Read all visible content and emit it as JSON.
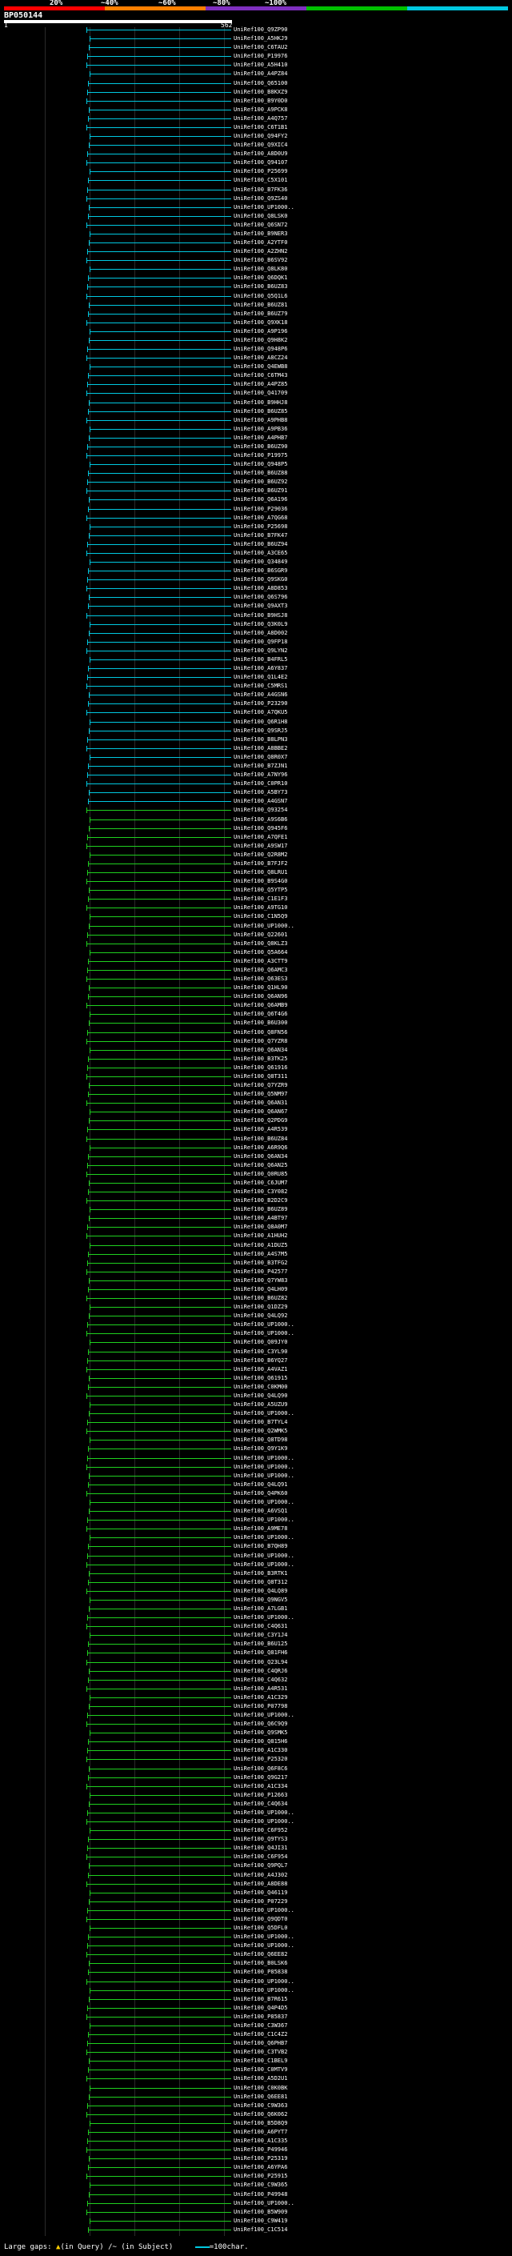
{
  "scale": {
    "ticks": [
      "20%",
      "~40%",
      "~60%",
      "~80%",
      "~100%"
    ],
    "colors": [
      "#ff0000",
      "#ff7f00",
      "#7f2fbf",
      "#00c000",
      "#00c8e0"
    ]
  },
  "query": {
    "title": "BP050144",
    "start": "1",
    "end": "562"
  },
  "colors": {
    "cyan": "#00c8e0",
    "green": "#1fd01f",
    "background": "#000000"
  },
  "hits": [
    {
      "label": "UniRef100_Q9ZP90",
      "color": "cyan"
    },
    {
      "label": "UniRef100_A5HKJ9",
      "color": "cyan"
    },
    {
      "label": "UniRef100_C6TAU2",
      "color": "cyan"
    },
    {
      "label": "UniRef100_P19976",
      "color": "cyan"
    },
    {
      "label": "UniRef100_A5H410",
      "color": "cyan"
    },
    {
      "label": "UniRef100_A4PZ84",
      "color": "cyan"
    },
    {
      "label": "UniRef100_Q65100",
      "color": "cyan"
    },
    {
      "label": "UniRef100_B8KXZ9",
      "color": "cyan"
    },
    {
      "label": "UniRef100_B9Y0D0",
      "color": "cyan"
    },
    {
      "label": "UniRef100_A9PCK8",
      "color": "cyan"
    },
    {
      "label": "UniRef100_A4Q757",
      "color": "cyan"
    },
    {
      "label": "UniRef100_C6T1B1",
      "color": "cyan"
    },
    {
      "label": "UniRef100_Q94FY2",
      "color": "cyan"
    },
    {
      "label": "UniRef100_Q9XIC4",
      "color": "cyan"
    },
    {
      "label": "UniRef100_A8D0U9",
      "color": "cyan"
    },
    {
      "label": "UniRef100_Q94107",
      "color": "cyan"
    },
    {
      "label": "UniRef100_P25699",
      "color": "cyan"
    },
    {
      "label": "UniRef100_C5X101",
      "color": "cyan"
    },
    {
      "label": "UniRef100_B7FK36",
      "color": "cyan"
    },
    {
      "label": "UniRef100_Q9ZS40",
      "color": "cyan"
    },
    {
      "label": "UniRef100_UP1000..",
      "color": "cyan"
    },
    {
      "label": "UniRef100_Q8LSK0",
      "color": "cyan"
    },
    {
      "label": "UniRef100_Q6SN72",
      "color": "cyan"
    },
    {
      "label": "UniRef100_B9NER3",
      "color": "cyan"
    },
    {
      "label": "UniRef100_A2YTF0",
      "color": "cyan"
    },
    {
      "label": "UniRef100_A2ZHN2",
      "color": "cyan"
    },
    {
      "label": "UniRef100_B6SV92",
      "color": "cyan"
    },
    {
      "label": "UniRef100_Q8LK80",
      "color": "cyan"
    },
    {
      "label": "UniRef100_Q6DQK1",
      "color": "cyan"
    },
    {
      "label": "UniRef100_B6UZ83",
      "color": "cyan"
    },
    {
      "label": "UniRef100_Q5Q1L6",
      "color": "cyan"
    },
    {
      "label": "UniRef100_B6UZ81",
      "color": "cyan"
    },
    {
      "label": "UniRef100_B6UZ79",
      "color": "cyan"
    },
    {
      "label": "UniRef100_Q9XK18",
      "color": "cyan"
    },
    {
      "label": "UniRef100_A9P196",
      "color": "cyan"
    },
    {
      "label": "UniRef100_Q9H8K2",
      "color": "cyan"
    },
    {
      "label": "UniRef100_Q948P6",
      "color": "cyan"
    },
    {
      "label": "UniRef100_A8CZ24",
      "color": "cyan"
    },
    {
      "label": "UniRef100_Q4EWB8",
      "color": "cyan"
    },
    {
      "label": "UniRef100_C6TM43",
      "color": "cyan"
    },
    {
      "label": "UniRef100_A4PZ85",
      "color": "cyan"
    },
    {
      "label": "UniRef100_Q41709",
      "color": "cyan"
    },
    {
      "label": "UniRef100_B9HHJ8",
      "color": "cyan"
    },
    {
      "label": "UniRef100_B6UZ85",
      "color": "cyan"
    },
    {
      "label": "UniRef100_A9PHB8",
      "color": "cyan"
    },
    {
      "label": "UniRef100_A9PB36",
      "color": "cyan"
    },
    {
      "label": "UniRef100_A4PHB7",
      "color": "cyan"
    },
    {
      "label": "UniRef100_B6UZ90",
      "color": "cyan"
    },
    {
      "label": "UniRef100_P19975",
      "color": "cyan"
    },
    {
      "label": "UniRef100_Q948P5",
      "color": "cyan"
    },
    {
      "label": "UniRef100_B6UZ88",
      "color": "cyan"
    },
    {
      "label": "UniRef100_B6UZ92",
      "color": "cyan"
    },
    {
      "label": "UniRef100_B6UZ91",
      "color": "cyan"
    },
    {
      "label": "UniRef100_Q6A196",
      "color": "cyan"
    },
    {
      "label": "UniRef100_P29036",
      "color": "cyan"
    },
    {
      "label": "UniRef100_A7QG68",
      "color": "cyan"
    },
    {
      "label": "UniRef100_P25698",
      "color": "cyan"
    },
    {
      "label": "UniRef100_B7FK47",
      "color": "cyan"
    },
    {
      "label": "UniRef100_B6UZ94",
      "color": "cyan"
    },
    {
      "label": "UniRef100_A3CE65",
      "color": "cyan"
    },
    {
      "label": "UniRef100_Q34849",
      "color": "cyan"
    },
    {
      "label": "UniRef100_B6SGR9",
      "color": "cyan"
    },
    {
      "label": "UniRef100_Q9SKG0",
      "color": "cyan"
    },
    {
      "label": "UniRef100_A8D853",
      "color": "cyan"
    },
    {
      "label": "UniRef100_Q6S796",
      "color": "cyan"
    },
    {
      "label": "UniRef100_Q9AXT3",
      "color": "cyan"
    },
    {
      "label": "UniRef100_B9HSJ8",
      "color": "cyan"
    },
    {
      "label": "UniRef100_Q3K0L9",
      "color": "cyan"
    },
    {
      "label": "UniRef100_A8D002",
      "color": "cyan"
    },
    {
      "label": "UniRef100_Q9FP18",
      "color": "cyan"
    },
    {
      "label": "UniRef100_Q9LYN2",
      "color": "cyan"
    },
    {
      "label": "UniRef100_B4FRL5",
      "color": "cyan"
    },
    {
      "label": "UniRef100_A6Y837",
      "color": "cyan"
    },
    {
      "label": "UniRef100_Q1L4E2",
      "color": "cyan"
    },
    {
      "label": "UniRef100_C5MRS1",
      "color": "cyan"
    },
    {
      "label": "UniRef100_A4GSN6",
      "color": "cyan"
    },
    {
      "label": "UniRef100_P23290",
      "color": "cyan"
    },
    {
      "label": "UniRef100_A7QKU5",
      "color": "cyan"
    },
    {
      "label": "UniRef100_Q6R1H8",
      "color": "cyan"
    },
    {
      "label": "UniRef100_Q9SRJ5",
      "color": "cyan"
    },
    {
      "label": "UniRef100_B8LPN3",
      "color": "cyan"
    },
    {
      "label": "UniRef100_A8BBE2",
      "color": "cyan"
    },
    {
      "label": "UniRef100_Q8R0X7",
      "color": "cyan"
    },
    {
      "label": "UniRef100_B7ZJN1",
      "color": "cyan"
    },
    {
      "label": "UniRef100_A7NY96",
      "color": "cyan"
    },
    {
      "label": "UniRef100_C0PR10",
      "color": "cyan"
    },
    {
      "label": "UniRef100_A5BY73",
      "color": "cyan"
    },
    {
      "label": "UniRef100_A4GSN7",
      "color": "cyan"
    },
    {
      "label": "UniRef100_Q93254",
      "color": "green"
    },
    {
      "label": "UniRef100_A9S6B6",
      "color": "green"
    },
    {
      "label": "UniRef100_Q945F6",
      "color": "green"
    },
    {
      "label": "UniRef100_A7QFE1",
      "color": "green"
    },
    {
      "label": "UniRef100_A9SW17",
      "color": "green"
    },
    {
      "label": "UniRef100_Q2R8M2",
      "color": "green"
    },
    {
      "label": "UniRef100_B7FJF2",
      "color": "green"
    },
    {
      "label": "UniRef100_Q8LRU1",
      "color": "green"
    },
    {
      "label": "UniRef100_B9S4G0",
      "color": "green"
    },
    {
      "label": "UniRef100_Q5YTP5",
      "color": "green"
    },
    {
      "label": "UniRef100_C1E1F3",
      "color": "green"
    },
    {
      "label": "UniRef100_A9TG10",
      "color": "green"
    },
    {
      "label": "UniRef100_C1N5Q9",
      "color": "green"
    },
    {
      "label": "UniRef100_UP1000..",
      "color": "green"
    },
    {
      "label": "UniRef100_Q22601",
      "color": "green"
    },
    {
      "label": "UniRef100_Q8KLZ3",
      "color": "green"
    },
    {
      "label": "UniRef100_Q5A664",
      "color": "green"
    },
    {
      "label": "UniRef100_A3CTT9",
      "color": "green"
    },
    {
      "label": "UniRef100_Q6AMC3",
      "color": "green"
    },
    {
      "label": "UniRef100_Q63ES3",
      "color": "green"
    },
    {
      "label": "UniRef100_Q1HL90",
      "color": "green"
    },
    {
      "label": "UniRef100_Q6AN96",
      "color": "green"
    },
    {
      "label": "UniRef100_Q6AMB9",
      "color": "green"
    },
    {
      "label": "UniRef100_Q6T4G6",
      "color": "green"
    },
    {
      "label": "UniRef100_B6U300",
      "color": "green"
    },
    {
      "label": "UniRef100_Q8FN56",
      "color": "green"
    },
    {
      "label": "UniRef100_Q7YZR8",
      "color": "green"
    },
    {
      "label": "UniRef100_Q6AN34",
      "color": "green"
    },
    {
      "label": "UniRef100_B3TK25",
      "color": "green"
    },
    {
      "label": "UniRef100_Q61916",
      "color": "green"
    },
    {
      "label": "UniRef100_Q8T311",
      "color": "green"
    },
    {
      "label": "UniRef100_Q7YZR9",
      "color": "green"
    },
    {
      "label": "UniRef100_Q5NM97",
      "color": "green"
    },
    {
      "label": "UniRef100_Q6AN31",
      "color": "green"
    },
    {
      "label": "UniRef100_Q6AN67",
      "color": "green"
    },
    {
      "label": "UniRef100_Q2PDG9",
      "color": "green"
    },
    {
      "label": "UniRef100_A4R539",
      "color": "green"
    },
    {
      "label": "UniRef100_B6UZ84",
      "color": "green"
    },
    {
      "label": "UniRef100_A6R9Q6",
      "color": "green"
    },
    {
      "label": "UniRef100_Q6AN34",
      "color": "green"
    },
    {
      "label": "UniRef100_Q6AN25",
      "color": "green"
    },
    {
      "label": "UniRef100_Q0RU85",
      "color": "green"
    },
    {
      "label": "UniRef100_C6JUM7",
      "color": "green"
    },
    {
      "label": "UniRef100_C3Y082",
      "color": "green"
    },
    {
      "label": "UniRef100_B2D2C9",
      "color": "green"
    },
    {
      "label": "UniRef100_B6UZ89",
      "color": "green"
    },
    {
      "label": "UniRef100_A4BT97",
      "color": "green"
    },
    {
      "label": "UniRef100_Q8A0M7",
      "color": "green"
    },
    {
      "label": "UniRef100_A1HUH2",
      "color": "green"
    },
    {
      "label": "UniRef100_A1DUZ5",
      "color": "green"
    },
    {
      "label": "UniRef100_A4S7M5",
      "color": "green"
    },
    {
      "label": "UniRef100_B3TFG2",
      "color": "green"
    },
    {
      "label": "UniRef100_P42577",
      "color": "green"
    },
    {
      "label": "UniRef100_Q7YW83",
      "color": "green"
    },
    {
      "label": "UniRef100_Q4LH09",
      "color": "green"
    },
    {
      "label": "UniRef100_B6UZ82",
      "color": "green"
    },
    {
      "label": "UniRef100_Q1DZ29",
      "color": "green"
    },
    {
      "label": "UniRef100_Q4LQ92",
      "color": "green"
    },
    {
      "label": "UniRef100_UP1000..",
      "color": "green"
    },
    {
      "label": "UniRef100_UP1000..",
      "color": "green"
    },
    {
      "label": "UniRef100_Q09JY0",
      "color": "green"
    },
    {
      "label": "UniRef100_C3YL90",
      "color": "green"
    },
    {
      "label": "UniRef100_B6YQ27",
      "color": "green"
    },
    {
      "label": "UniRef100_A4VAZ1",
      "color": "green"
    },
    {
      "label": "UniRef100_Q61915",
      "color": "green"
    },
    {
      "label": "UniRef100_C0KM00",
      "color": "green"
    },
    {
      "label": "UniRef100_Q4LQ90",
      "color": "green"
    },
    {
      "label": "UniRef100_A5UZU9",
      "color": "green"
    },
    {
      "label": "UniRef100_UP1000..",
      "color": "green"
    },
    {
      "label": "UniRef100_B7TYL4",
      "color": "green"
    },
    {
      "label": "UniRef100_Q2WMK5",
      "color": "green"
    },
    {
      "label": "UniRef100_Q8TD98",
      "color": "green"
    },
    {
      "label": "UniRef100_Q9Y1K9",
      "color": "green"
    },
    {
      "label": "UniRef100_UP1000..",
      "color": "green"
    },
    {
      "label": "UniRef100_UP1000..",
      "color": "green"
    },
    {
      "label": "UniRef100_UP1000..",
      "color": "green"
    },
    {
      "label": "UniRef100_Q4LQ91",
      "color": "green"
    },
    {
      "label": "UniRef100_Q4PK60",
      "color": "green"
    },
    {
      "label": "UniRef100_UP1000..",
      "color": "green"
    },
    {
      "label": "UniRef100_A6VSQ1",
      "color": "green"
    },
    {
      "label": "UniRef100_UP1000..",
      "color": "green"
    },
    {
      "label": "UniRef100_A9ME78",
      "color": "green"
    },
    {
      "label": "UniRef100_UP1000..",
      "color": "green"
    },
    {
      "label": "UniRef100_B7QH89",
      "color": "green"
    },
    {
      "label": "UniRef100_UP1000..",
      "color": "green"
    },
    {
      "label": "UniRef100_UP1000..",
      "color": "green"
    },
    {
      "label": "UniRef100_B3RTK1",
      "color": "green"
    },
    {
      "label": "UniRef100_Q8T312",
      "color": "green"
    },
    {
      "label": "UniRef100_Q4LQ89",
      "color": "green"
    },
    {
      "label": "UniRef100_Q9NGV5",
      "color": "green"
    },
    {
      "label": "UniRef100_A7LGB1",
      "color": "green"
    },
    {
      "label": "UniRef100_UP1000..",
      "color": "green"
    },
    {
      "label": "UniRef100_C4Q631",
      "color": "green"
    },
    {
      "label": "UniRef100_C3Y1J4",
      "color": "green"
    },
    {
      "label": "UniRef100_B6U125",
      "color": "green"
    },
    {
      "label": "UniRef100_Q81FH6",
      "color": "green"
    },
    {
      "label": "UniRef100_Q23L94",
      "color": "green"
    },
    {
      "label": "UniRef100_C4QRJ6",
      "color": "green"
    },
    {
      "label": "UniRef100_C4Q632",
      "color": "green"
    },
    {
      "label": "UniRef100_A4R531",
      "color": "green"
    },
    {
      "label": "UniRef100_A1C329",
      "color": "green"
    },
    {
      "label": "UniRef100_P07798",
      "color": "green"
    },
    {
      "label": "UniRef100_UP1000..",
      "color": "green"
    },
    {
      "label": "UniRef100_Q6C9Q9",
      "color": "green"
    },
    {
      "label": "UniRef100_Q9SMK5",
      "color": "green"
    },
    {
      "label": "UniRef100_Q815H6",
      "color": "green"
    },
    {
      "label": "UniRef100_A1C330",
      "color": "green"
    },
    {
      "label": "UniRef100_P25320",
      "color": "green"
    },
    {
      "label": "UniRef100_Q6F8C6",
      "color": "green"
    },
    {
      "label": "UniRef100_Q9G217",
      "color": "green"
    },
    {
      "label": "UniRef100_A1C334",
      "color": "green"
    },
    {
      "label": "UniRef100_P12663",
      "color": "green"
    },
    {
      "label": "UniRef100_C4Q634",
      "color": "green"
    },
    {
      "label": "UniRef100_UP1000..",
      "color": "green"
    },
    {
      "label": "UniRef100_UP1000..",
      "color": "green"
    },
    {
      "label": "UniRef100_C6F952",
      "color": "green"
    },
    {
      "label": "UniRef100_Q9TYS3",
      "color": "green"
    },
    {
      "label": "UniRef100_Q4JI31",
      "color": "green"
    },
    {
      "label": "UniRef100_C6F954",
      "color": "green"
    },
    {
      "label": "UniRef100_Q9PQL7",
      "color": "green"
    },
    {
      "label": "UniRef100_A4J302",
      "color": "green"
    },
    {
      "label": "UniRef100_A8DE88",
      "color": "green"
    },
    {
      "label": "UniRef100_Q46119",
      "color": "green"
    },
    {
      "label": "UniRef100_P07229",
      "color": "green"
    },
    {
      "label": "UniRef100_UP1000..",
      "color": "green"
    },
    {
      "label": "UniRef100_Q9QDT0",
      "color": "green"
    },
    {
      "label": "UniRef100_Q5DFL0",
      "color": "green"
    },
    {
      "label": "UniRef100_UP1000..",
      "color": "green"
    },
    {
      "label": "UniRef100_UP1000..",
      "color": "green"
    },
    {
      "label": "UniRef100_Q6EE82",
      "color": "green"
    },
    {
      "label": "UniRef100_B0LSK6",
      "color": "green"
    },
    {
      "label": "UniRef100_P85838",
      "color": "green"
    },
    {
      "label": "UniRef100_UP1000..",
      "color": "green"
    },
    {
      "label": "UniRef100_UP1000..",
      "color": "green"
    },
    {
      "label": "UniRef100_B7R615",
      "color": "green"
    },
    {
      "label": "UniRef100_Q4P4D5",
      "color": "green"
    },
    {
      "label": "UniRef100_P85837",
      "color": "green"
    },
    {
      "label": "UniRef100_C3W367",
      "color": "green"
    },
    {
      "label": "UniRef100_C1C4Z2",
      "color": "green"
    },
    {
      "label": "UniRef100_Q6PHB7",
      "color": "green"
    },
    {
      "label": "UniRef100_C3TVB2",
      "color": "green"
    },
    {
      "label": "UniRef100_C1BEL9",
      "color": "green"
    },
    {
      "label": "UniRef100_C0MTV9",
      "color": "green"
    },
    {
      "label": "UniRef100_A5D2U1",
      "color": "green"
    },
    {
      "label": "UniRef100_C0K0BK",
      "color": "green"
    },
    {
      "label": "UniRef100_Q6EE81",
      "color": "green"
    },
    {
      "label": "UniRef100_C9W363",
      "color": "green"
    },
    {
      "label": "UniRef100_Q6K062",
      "color": "green"
    },
    {
      "label": "UniRef100_B5D8Q9",
      "color": "green"
    },
    {
      "label": "UniRef100_A6PYT7",
      "color": "green"
    },
    {
      "label": "UniRef100_A1C335",
      "color": "green"
    },
    {
      "label": "UniRef100_P49946",
      "color": "green"
    },
    {
      "label": "UniRef100_P25319",
      "color": "green"
    },
    {
      "label": "UniRef100_A6YPA6",
      "color": "green"
    },
    {
      "label": "UniRef100_P25915",
      "color": "green"
    },
    {
      "label": "UniRef100_C9W365",
      "color": "green"
    },
    {
      "label": "UniRef100_P49948",
      "color": "green"
    },
    {
      "label": "UniRef100_UP1000..",
      "color": "green"
    },
    {
      "label": "UniRef100_B5W909",
      "color": "green"
    },
    {
      "label": "UniRef100_C9W419",
      "color": "green"
    },
    {
      "label": "UniRef100_C1C514",
      "color": "green"
    }
  ],
  "footer": {
    "gaps_label": "Large gaps:",
    "in_query": "(in Query)",
    "in_subject": "/~ (in Subject)",
    "scale_label": "=100char."
  }
}
